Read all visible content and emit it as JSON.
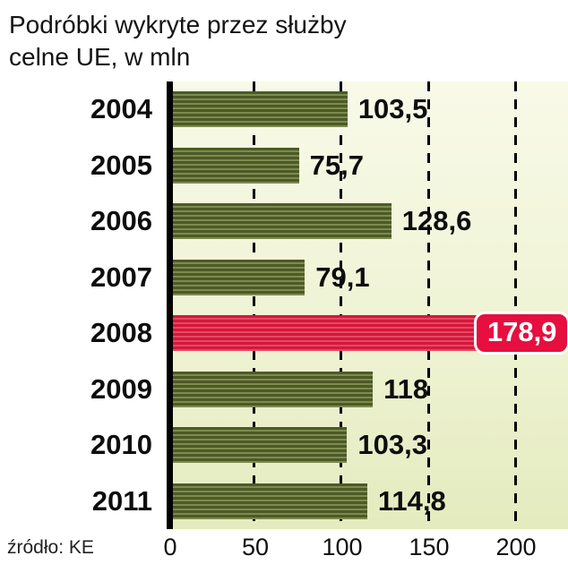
{
  "title": {
    "line1": "Podróbki wykryte przez służby",
    "line2": "celne UE, w mln"
  },
  "source": "źródło: KE",
  "chart_data": {
    "type": "bar",
    "orientation": "horizontal",
    "title": "Podróbki wykryte przez służby celne UE, w mln",
    "categories": [
      "2004",
      "2005",
      "2006",
      "2007",
      "2008",
      "2009",
      "2010",
      "2011"
    ],
    "values": [
      103.5,
      75.7,
      128.6,
      79.1,
      178.9,
      118,
      103.3,
      114.8
    ],
    "value_labels": [
      "103,5",
      "75,7",
      "128,6",
      "79,1",
      "178,9",
      "118",
      "103,3",
      "114,8"
    ],
    "highlight_index": 4,
    "xlim": [
      0,
      200
    ],
    "x_ticks": [
      "0",
      "50",
      "100",
      "150",
      "200"
    ],
    "xlabel": "",
    "ylabel": "",
    "grid": "vertical-dashed",
    "legend": "none",
    "colors": {
      "bar": "#4d5a27",
      "bar_stripe": "#7d8b4f",
      "highlight": "#d6173b",
      "badge": "#e60f3f",
      "plot_bg_top": "#f8fae8",
      "plot_bg_bottom": "#e4ebbe",
      "axis": "#000000"
    }
  }
}
